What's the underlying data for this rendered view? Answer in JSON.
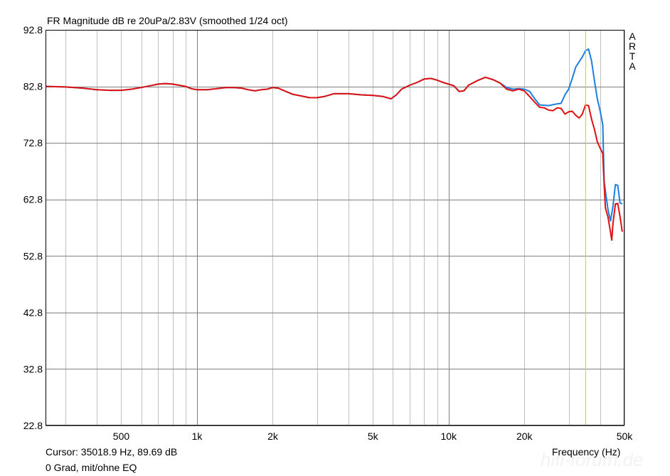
{
  "window": {
    "title": "FR Magnitude dB re 20uPa/2.83V (smoothed 1/24 oct)",
    "brand_letters": [
      "A",
      "R",
      "T",
      "A"
    ],
    "cursor_readout": "Cursor: 35018.9 Hz, 89.69 dB",
    "caption": "0 Grad, mit/ohne EQ",
    "watermark": "hifi-forum.de"
  },
  "colors": {
    "background": "#ffffff",
    "grid_major": "#808080",
    "grid_minor": "#c0c0c0",
    "series_blue": "#1a7fe0",
    "series_red": "#e01010",
    "cursor_line": "#e0d000"
  },
  "chart_data": {
    "type": "line",
    "title": "FR Magnitude dB re 20uPa/2.83V (smoothed 1/24 oct)",
    "xlabel": "Frequency (Hz)",
    "ylabel": "",
    "xscale": "log",
    "xlim": [
      250,
      50000
    ],
    "ylim": [
      22.8,
      92.8
    ],
    "yticks": [
      92.8,
      82.8,
      72.8,
      62.8,
      52.8,
      42.8,
      32.8,
      22.8
    ],
    "ytick_labels": [
      "92.8",
      "82.8",
      "72.8",
      "62.8",
      "52.8",
      "42.8",
      "32.8",
      "22.8"
    ],
    "xticks": [
      500,
      1000,
      2000,
      5000,
      10000,
      20000,
      50000
    ],
    "xtick_labels": [
      "500",
      "1k",
      "2k",
      "5k",
      "10k",
      "20k",
      "50k"
    ],
    "x_minor_grid": [
      300,
      400,
      500,
      600,
      700,
      800,
      900,
      1000,
      2000,
      3000,
      4000,
      5000,
      6000,
      7000,
      8000,
      9000,
      10000,
      20000,
      30000,
      40000,
      50000
    ],
    "grid": true,
    "cursor": {
      "frequency_hz": 35018.9,
      "level_db": 89.69
    },
    "series": [
      {
        "color": "#1a7fe0",
        "points": [
          [
            250,
            82.8
          ],
          [
            300,
            82.7
          ],
          [
            350,
            82.5
          ],
          [
            400,
            82.2
          ],
          [
            450,
            82.1
          ],
          [
            500,
            82.1
          ],
          [
            550,
            82.3
          ],
          [
            600,
            82.6
          ],
          [
            650,
            82.9
          ],
          [
            700,
            83.2
          ],
          [
            750,
            83.3
          ],
          [
            800,
            83.2
          ],
          [
            900,
            82.8
          ],
          [
            950,
            82.4
          ],
          [
            1000,
            82.2
          ],
          [
            1100,
            82.2
          ],
          [
            1200,
            82.4
          ],
          [
            1300,
            82.6
          ],
          [
            1400,
            82.6
          ],
          [
            1500,
            82.5
          ],
          [
            1600,
            82.2
          ],
          [
            1700,
            82.0
          ],
          [
            1800,
            82.2
          ],
          [
            1900,
            82.3
          ],
          [
            2000,
            82.6
          ],
          [
            2100,
            82.5
          ],
          [
            2200,
            82.1
          ],
          [
            2400,
            81.4
          ],
          [
            2600,
            81.1
          ],
          [
            2800,
            80.8
          ],
          [
            3000,
            80.8
          ],
          [
            3200,
            81.0
          ],
          [
            3500,
            81.5
          ],
          [
            4000,
            81.5
          ],
          [
            4500,
            81.3
          ],
          [
            5000,
            81.2
          ],
          [
            5500,
            81.0
          ],
          [
            5900,
            80.6
          ],
          [
            6200,
            81.3
          ],
          [
            6500,
            82.3
          ],
          [
            7000,
            83.0
          ],
          [
            7500,
            83.5
          ],
          [
            8000,
            84.1
          ],
          [
            8500,
            84.2
          ],
          [
            9000,
            83.9
          ],
          [
            9500,
            83.5
          ],
          [
            10000,
            83.2
          ],
          [
            10500,
            82.9
          ],
          [
            11000,
            81.9
          ],
          [
            11500,
            82.0
          ],
          [
            12000,
            83.0
          ],
          [
            13000,
            83.8
          ],
          [
            14000,
            84.4
          ],
          [
            15000,
            84.0
          ],
          [
            16000,
            83.4
          ],
          [
            17000,
            82.6
          ],
          [
            18000,
            82.3
          ],
          [
            19000,
            82.4
          ],
          [
            20000,
            82.3
          ],
          [
            21000,
            81.9
          ],
          [
            22000,
            80.6
          ],
          [
            23000,
            79.5
          ],
          [
            25000,
            79.4
          ],
          [
            27000,
            79.7
          ],
          [
            28000,
            79.8
          ],
          [
            29000,
            81.3
          ],
          [
            30000,
            82.3
          ],
          [
            31000,
            84.2
          ],
          [
            32000,
            86.2
          ],
          [
            34000,
            88.0
          ],
          [
            35000,
            89.1
          ],
          [
            36000,
            89.4
          ],
          [
            37000,
            87.3
          ],
          [
            38000,
            83.8
          ],
          [
            39000,
            80.6
          ],
          [
            40000,
            78.5
          ],
          [
            41000,
            76.0
          ],
          [
            41500,
            66.0
          ],
          [
            42000,
            64.3
          ],
          [
            43000,
            61.0
          ],
          [
            44000,
            59.0
          ],
          [
            45000,
            61.6
          ],
          [
            46000,
            65.4
          ],
          [
            47000,
            65.3
          ],
          [
            48000,
            62.2
          ],
          [
            49000,
            62.0
          ]
        ]
      },
      {
        "color": "#e01010",
        "points": [
          [
            250,
            82.8
          ],
          [
            300,
            82.7
          ],
          [
            350,
            82.5
          ],
          [
            400,
            82.2
          ],
          [
            450,
            82.1
          ],
          [
            500,
            82.1
          ],
          [
            550,
            82.3
          ],
          [
            600,
            82.6
          ],
          [
            650,
            82.9
          ],
          [
            700,
            83.2
          ],
          [
            750,
            83.3
          ],
          [
            800,
            83.2
          ],
          [
            900,
            82.8
          ],
          [
            950,
            82.4
          ],
          [
            1000,
            82.2
          ],
          [
            1100,
            82.2
          ],
          [
            1200,
            82.4
          ],
          [
            1300,
            82.6
          ],
          [
            1400,
            82.6
          ],
          [
            1500,
            82.5
          ],
          [
            1600,
            82.2
          ],
          [
            1700,
            82.0
          ],
          [
            1800,
            82.2
          ],
          [
            1900,
            82.3
          ],
          [
            2000,
            82.6
          ],
          [
            2100,
            82.5
          ],
          [
            2200,
            82.1
          ],
          [
            2400,
            81.4
          ],
          [
            2600,
            81.1
          ],
          [
            2800,
            80.8
          ],
          [
            3000,
            80.8
          ],
          [
            3200,
            81.0
          ],
          [
            3500,
            81.5
          ],
          [
            4000,
            81.5
          ],
          [
            4500,
            81.3
          ],
          [
            5000,
            81.2
          ],
          [
            5500,
            81.0
          ],
          [
            5900,
            80.6
          ],
          [
            6200,
            81.3
          ],
          [
            6500,
            82.3
          ],
          [
            7000,
            83.0
          ],
          [
            7500,
            83.5
          ],
          [
            8000,
            84.1
          ],
          [
            8500,
            84.2
          ],
          [
            9000,
            83.9
          ],
          [
            9500,
            83.5
          ],
          [
            10000,
            83.2
          ],
          [
            10500,
            82.9
          ],
          [
            11000,
            81.9
          ],
          [
            11500,
            82.0
          ],
          [
            12000,
            83.0
          ],
          [
            13000,
            83.8
          ],
          [
            14000,
            84.4
          ],
          [
            15000,
            84.0
          ],
          [
            16000,
            83.4
          ],
          [
            17000,
            82.3
          ],
          [
            18000,
            82.0
          ],
          [
            19000,
            82.3
          ],
          [
            20000,
            82.0
          ],
          [
            21000,
            81.0
          ],
          [
            22000,
            80.0
          ],
          [
            23000,
            79.1
          ],
          [
            24000,
            79.0
          ],
          [
            25000,
            78.6
          ],
          [
            26000,
            78.5
          ],
          [
            27000,
            79.0
          ],
          [
            28000,
            78.9
          ],
          [
            29000,
            77.9
          ],
          [
            30000,
            78.3
          ],
          [
            31000,
            78.4
          ],
          [
            32000,
            77.7
          ],
          [
            33000,
            77.2
          ],
          [
            34000,
            77.9
          ],
          [
            35000,
            79.5
          ],
          [
            36000,
            79.4
          ],
          [
            37000,
            77.0
          ],
          [
            38000,
            75.2
          ],
          [
            39000,
            73.0
          ],
          [
            40000,
            71.9
          ],
          [
            41000,
            70.9
          ],
          [
            41500,
            65.5
          ],
          [
            42000,
            61.3
          ],
          [
            43000,
            59.7
          ],
          [
            44000,
            57.0
          ],
          [
            44500,
            55.6
          ],
          [
            45000,
            58.5
          ],
          [
            46000,
            62.0
          ],
          [
            47000,
            62.1
          ],
          [
            48000,
            59.8
          ],
          [
            49000,
            57.1
          ]
        ]
      }
    ]
  }
}
